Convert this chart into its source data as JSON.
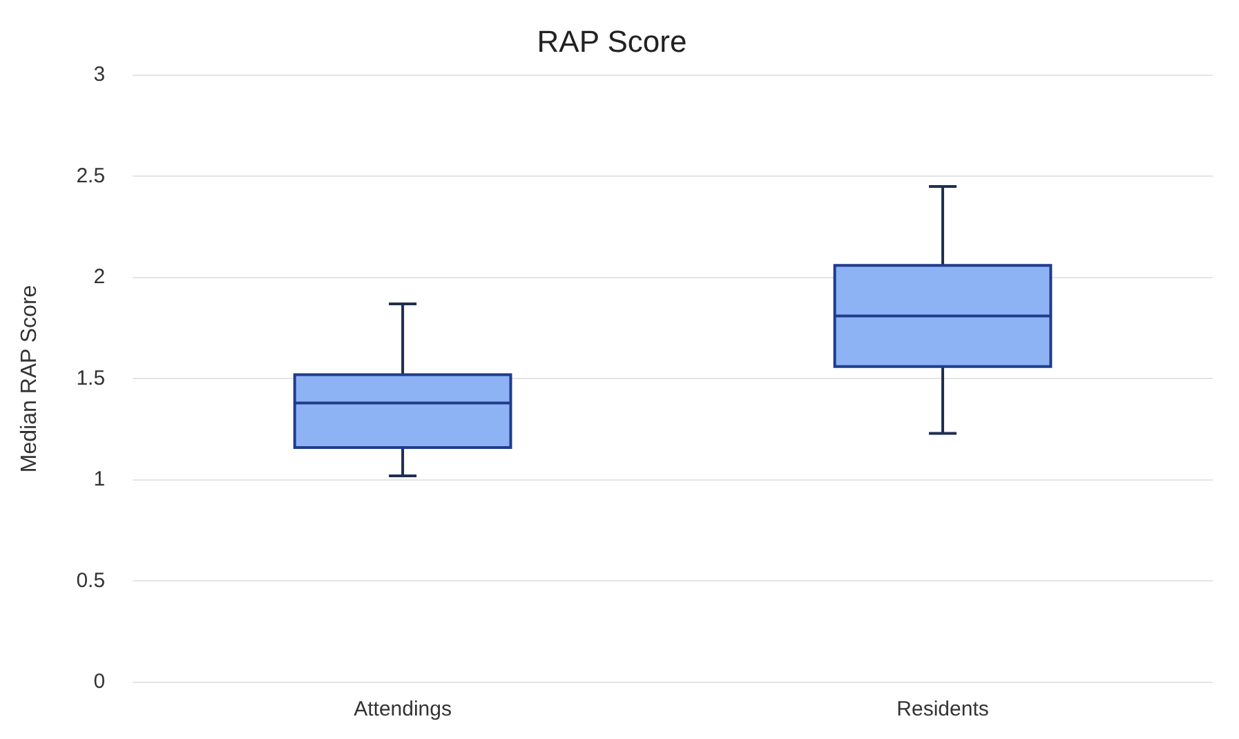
{
  "chart_data": {
    "type": "box",
    "title": "RAP Score",
    "ylabel": "Median RAP Score",
    "categories": [
      "Attendings",
      "Residents"
    ],
    "boxes": [
      {
        "low": 1.02,
        "q1": 1.16,
        "median": 1.38,
        "q3": 1.52,
        "high": 1.87
      },
      {
        "low": 1.23,
        "q1": 1.56,
        "median": 1.81,
        "q3": 2.06,
        "high": 2.45
      }
    ],
    "color": "#8db3f5",
    "ylim": [
      0,
      3
    ],
    "yticks": [
      0,
      0.5,
      1,
      1.5,
      2,
      2.5,
      3
    ],
    "grid": "y",
    "legend": false
  }
}
